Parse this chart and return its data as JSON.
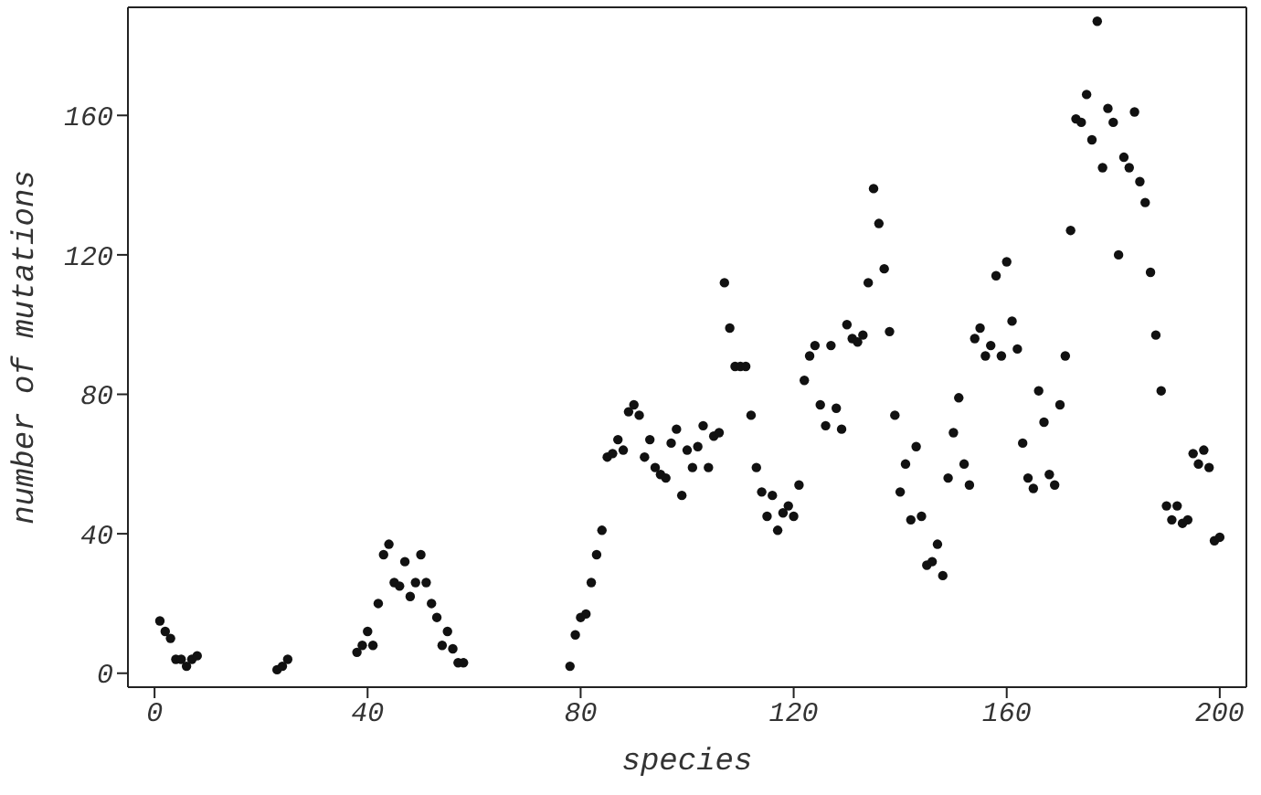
{
  "chart_data": {
    "type": "scatter",
    "xlabel": "species",
    "ylabel": "number of mutations",
    "xlim": [
      -5,
      205
    ],
    "ylim": [
      -4,
      191
    ],
    "xticks": [
      0,
      40,
      80,
      120,
      160,
      200
    ],
    "yticks": [
      0,
      40,
      80,
      120,
      160
    ],
    "marker": "circle",
    "series": [
      {
        "color": "#111111",
        "x": [
          1,
          2,
          3,
          4,
          5,
          6,
          7,
          8,
          23,
          24,
          25,
          38,
          39,
          40,
          41,
          42,
          43,
          44,
          45,
          46,
          47,
          48,
          49,
          50,
          51,
          52,
          53,
          54,
          55,
          56,
          57,
          58,
          78,
          79,
          80,
          81,
          82,
          83,
          84,
          85,
          86,
          87,
          88,
          89,
          90,
          91,
          92,
          93,
          94,
          95,
          96,
          97,
          98,
          99,
          100,
          101,
          102,
          103,
          104,
          105,
          106,
          107,
          108,
          109,
          110,
          111,
          112,
          113,
          114,
          115,
          116,
          117,
          118,
          119,
          120,
          121,
          122,
          123,
          124,
          125,
          126,
          127,
          128,
          129,
          130,
          131,
          132,
          133,
          134,
          135,
          136,
          137,
          138,
          139,
          140,
          141,
          142,
          143,
          144,
          145,
          146,
          147,
          148,
          149,
          150,
          151,
          152,
          153,
          154,
          155,
          156,
          157,
          158,
          159,
          160,
          161,
          162,
          163,
          164,
          165,
          166,
          167,
          168,
          169,
          170,
          171,
          172,
          173,
          174,
          175,
          176,
          177,
          178,
          179,
          180,
          181,
          182,
          183,
          184,
          185,
          186,
          187,
          188,
          189,
          190,
          191,
          192,
          193,
          194,
          195,
          196,
          197,
          198,
          199,
          200
        ],
        "values": [
          15,
          12,
          10,
          4,
          4,
          2,
          4,
          5,
          1,
          2,
          4,
          6,
          8,
          12,
          8,
          20,
          34,
          37,
          26,
          25,
          32,
          22,
          26,
          34,
          26,
          20,
          16,
          8,
          12,
          7,
          3,
          3,
          2,
          11,
          16,
          17,
          26,
          34,
          41,
          62,
          63,
          67,
          64,
          75,
          77,
          74,
          62,
          67,
          59,
          57,
          56,
          66,
          70,
          51,
          64,
          59,
          65,
          71,
          59,
          68,
          69,
          112,
          99,
          88,
          88,
          88,
          74,
          59,
          52,
          45,
          51,
          41,
          46,
          48,
          45,
          54,
          84,
          91,
          94,
          77,
          71,
          94,
          76,
          70,
          100,
          96,
          95,
          97,
          112,
          139,
          129,
          116,
          98,
          74,
          52,
          60,
          44,
          65,
          45,
          31,
          32,
          37,
          28,
          56,
          69,
          79,
          60,
          54,
          96,
          99,
          91,
          94,
          114,
          91,
          118,
          101,
          93,
          66,
          56,
          53,
          81,
          72,
          57,
          54,
          77,
          91,
          127,
          159,
          158,
          166,
          153,
          187,
          145,
          162,
          158,
          120,
          148,
          145,
          161,
          141,
          135,
          115,
          97,
          81,
          48,
          44,
          48,
          43,
          44,
          63,
          60,
          64,
          59,
          38,
          39
        ]
      }
    ]
  }
}
